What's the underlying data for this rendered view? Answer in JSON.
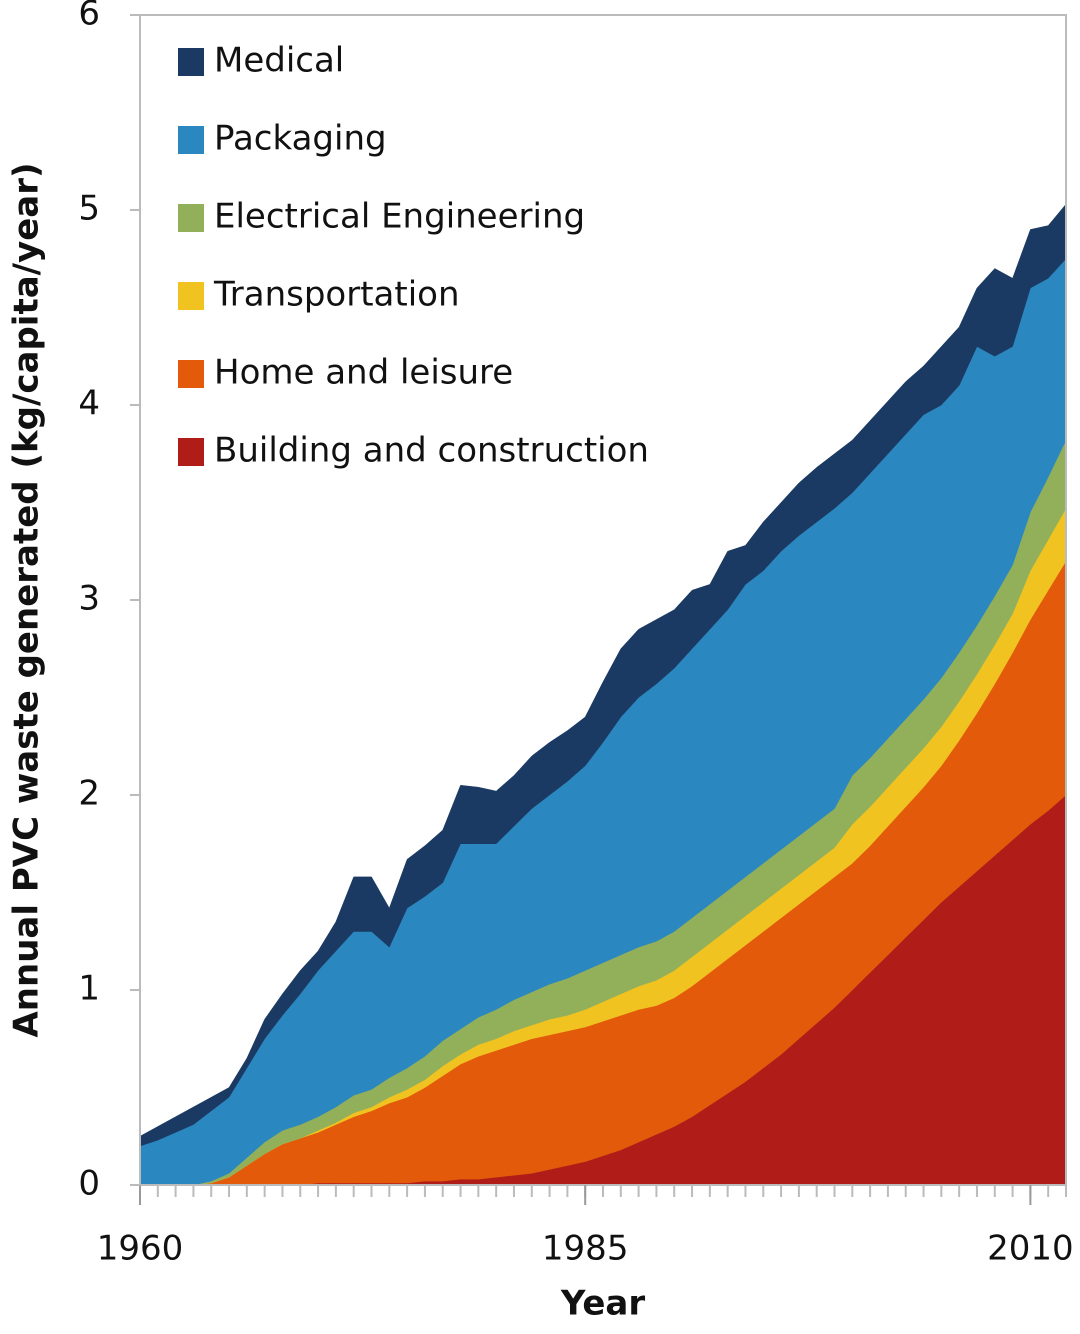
{
  "chart_data": {
    "type": "stacked_area",
    "xlabel": "Year",
    "ylabel": "Annual PVC waste generated (kg/capita/year)",
    "x": [
      1960,
      1961,
      1962,
      1963,
      1964,
      1965,
      1966,
      1967,
      1968,
      1969,
      1970,
      1971,
      1972,
      1973,
      1974,
      1975,
      1976,
      1977,
      1978,
      1979,
      1980,
      1981,
      1982,
      1983,
      1984,
      1985,
      1986,
      1987,
      1988,
      1989,
      1990,
      1991,
      1992,
      1993,
      1994,
      1995,
      1996,
      1997,
      1998,
      1999,
      2000,
      2001,
      2002,
      2003,
      2004,
      2005,
      2006,
      2007,
      2008,
      2009,
      2010,
      2011,
      2012
    ],
    "xlim": [
      1960,
      2012
    ],
    "xticks": [
      1960,
      1985,
      2010
    ],
    "ylim": [
      0,
      6
    ],
    "yticks": [
      0,
      1,
      2,
      3,
      4,
      5,
      6
    ],
    "grid": false,
    "legend": "upper left",
    "series": [
      {
        "name": "Building and construction",
        "color": "#b01c17",
        "values": [
          0,
          0,
          0,
          0,
          0,
          0,
          0,
          0,
          0,
          0,
          0.01,
          0.01,
          0.01,
          0.01,
          0.01,
          0.01,
          0.02,
          0.02,
          0.03,
          0.03,
          0.04,
          0.05,
          0.06,
          0.08,
          0.1,
          0.12,
          0.15,
          0.18,
          0.22,
          0.26,
          0.3,
          0.35,
          0.41,
          0.47,
          0.53,
          0.6,
          0.67,
          0.75,
          0.83,
          0.91,
          1.0,
          1.09,
          1.18,
          1.27,
          1.36,
          1.45,
          1.53,
          1.61,
          1.69,
          1.77,
          1.85,
          1.92,
          2.0
        ]
      },
      {
        "name": "Home and leisure",
        "color": "#e35a0a",
        "values": [
          0,
          0,
          0,
          0,
          0.01,
          0.04,
          0.1,
          0.16,
          0.21,
          0.24,
          0.26,
          0.3,
          0.34,
          0.37,
          0.41,
          0.44,
          0.48,
          0.54,
          0.59,
          0.63,
          0.65,
          0.67,
          0.69,
          0.69,
          0.69,
          0.69,
          0.69,
          0.69,
          0.68,
          0.66,
          0.66,
          0.67,
          0.68,
          0.69,
          0.7,
          0.7,
          0.7,
          0.69,
          0.68,
          0.67,
          0.65,
          0.65,
          0.66,
          0.67,
          0.68,
          0.7,
          0.75,
          0.81,
          0.88,
          0.96,
          1.05,
          1.13,
          1.2
        ]
      },
      {
        "name": "Transportation",
        "color": "#f0c320",
        "values": [
          0,
          0,
          0,
          0,
          0,
          0,
          0,
          0,
          0,
          0,
          0.01,
          0.01,
          0.02,
          0.02,
          0.03,
          0.04,
          0.04,
          0.05,
          0.05,
          0.06,
          0.06,
          0.07,
          0.07,
          0.08,
          0.08,
          0.09,
          0.1,
          0.11,
          0.12,
          0.13,
          0.14,
          0.15,
          0.15,
          0.15,
          0.15,
          0.15,
          0.15,
          0.15,
          0.15,
          0.15,
          0.2,
          0.2,
          0.2,
          0.2,
          0.2,
          0.2,
          0.2,
          0.2,
          0.2,
          0.2,
          0.25,
          0.26,
          0.27
        ]
      },
      {
        "name": "Electrical Engineering",
        "color": "#92b05a",
        "values": [
          0,
          0,
          0,
          0,
          0.01,
          0.02,
          0.04,
          0.06,
          0.07,
          0.07,
          0.07,
          0.08,
          0.09,
          0.09,
          0.1,
          0.11,
          0.12,
          0.13,
          0.13,
          0.14,
          0.15,
          0.16,
          0.17,
          0.18,
          0.19,
          0.2,
          0.2,
          0.2,
          0.2,
          0.2,
          0.2,
          0.2,
          0.2,
          0.2,
          0.2,
          0.2,
          0.2,
          0.2,
          0.2,
          0.2,
          0.25,
          0.25,
          0.25,
          0.25,
          0.25,
          0.25,
          0.25,
          0.25,
          0.25,
          0.25,
          0.3,
          0.32,
          0.35
        ]
      },
      {
        "name": "Packaging",
        "color": "#2b87bf",
        "values": [
          0.2,
          0.23,
          0.27,
          0.31,
          0.36,
          0.39,
          0.46,
          0.53,
          0.59,
          0.67,
          0.75,
          0.8,
          0.84,
          0.81,
          0.67,
          0.82,
          0.82,
          0.81,
          0.95,
          0.89,
          0.85,
          0.89,
          0.94,
          0.97,
          1.01,
          1.05,
          1.13,
          1.22,
          1.28,
          1.32,
          1.35,
          1.38,
          1.41,
          1.44,
          1.5,
          1.5,
          1.53,
          1.54,
          1.54,
          1.54,
          1.45,
          1.46,
          1.46,
          1.46,
          1.46,
          1.4,
          1.37,
          1.43,
          1.23,
          1.12,
          1.15,
          1.02,
          0.93
        ]
      },
      {
        "name": "Medical",
        "color": "#1a3a63",
        "values": [
          0.05,
          0.07,
          0.08,
          0.09,
          0.07,
          0.05,
          0.05,
          0.1,
          0.11,
          0.12,
          0.1,
          0.15,
          0.28,
          0.28,
          0.2,
          0.25,
          0.26,
          0.27,
          0.3,
          0.29,
          0.27,
          0.26,
          0.27,
          0.27,
          0.26,
          0.25,
          0.31,
          0.35,
          0.35,
          0.33,
          0.3,
          0.3,
          0.23,
          0.3,
          0.2,
          0.25,
          0.25,
          0.27,
          0.28,
          0.28,
          0.27,
          0.27,
          0.27,
          0.27,
          0.25,
          0.3,
          0.3,
          0.3,
          0.45,
          0.35,
          0.3,
          0.27,
          0.28
        ]
      }
    ]
  }
}
